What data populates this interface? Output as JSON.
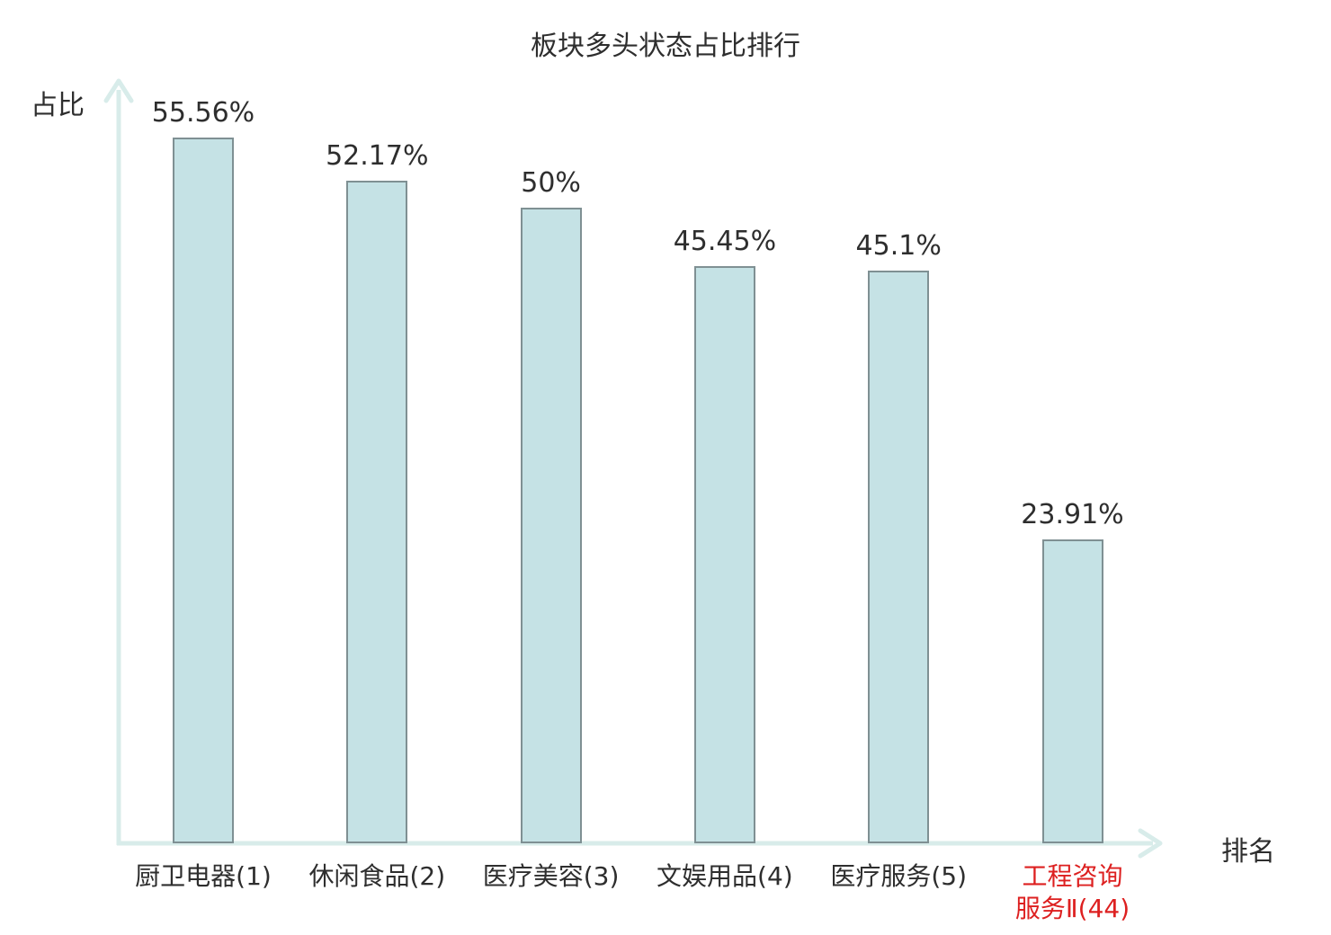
{
  "chart_data": {
    "type": "bar",
    "title": "板块多头状态占比排行",
    "ylabel": "占比",
    "xlabel": "排名",
    "categories": [
      "厨卫电器(1)",
      "休闲食品(2)",
      "医疗美容(3)",
      "文娱用品(4)",
      "医疗服务(5)",
      "工程咨询\n服务Ⅱ(44)"
    ],
    "values": [
      55.56,
      52.17,
      50,
      45.45,
      45.1,
      23.91
    ],
    "value_labels": [
      "55.56%",
      "52.17%",
      "50%",
      "45.45%",
      "45.1%",
      "23.91%"
    ],
    "highlight_index": 5,
    "ylim": [
      0,
      60
    ],
    "grid": false,
    "legend": null,
    "colors": {
      "bar_fill": "#c5e2e5",
      "bar_border": "#7f9093",
      "axis": "#d8ecea",
      "text": "#2e2e2e",
      "highlight_text": "#dd2020"
    }
  }
}
